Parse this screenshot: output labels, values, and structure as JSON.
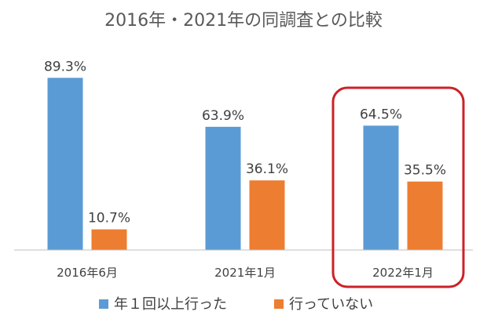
{
  "chart_data": {
    "type": "bar",
    "title": "2016年・2021年の同調査との比較",
    "categories": [
      "2016年6月",
      "2021年1月",
      "2022年1月"
    ],
    "series": [
      {
        "name": "年１回以上行った",
        "values": [
          89.3,
          63.9,
          64.5
        ],
        "labels": [
          "89.3%",
          "63.9%",
          "64.5%"
        ]
      },
      {
        "name": "行っていない",
        "values": [
          10.7,
          36.1,
          35.5
        ],
        "labels": [
          "10.7%",
          "36.1%",
          "35.5%"
        ]
      }
    ],
    "ylim": [
      0,
      100
    ],
    "grid": false,
    "legend_position": "bottom",
    "highlighted_category": "2022年1月"
  },
  "colors": {
    "series_0": "#5b9bd5",
    "series_1": "#ed7d31",
    "highlight": "#cc2128",
    "axis": "#bfbfbf",
    "text": "#404040",
    "title_text": "#595959"
  }
}
